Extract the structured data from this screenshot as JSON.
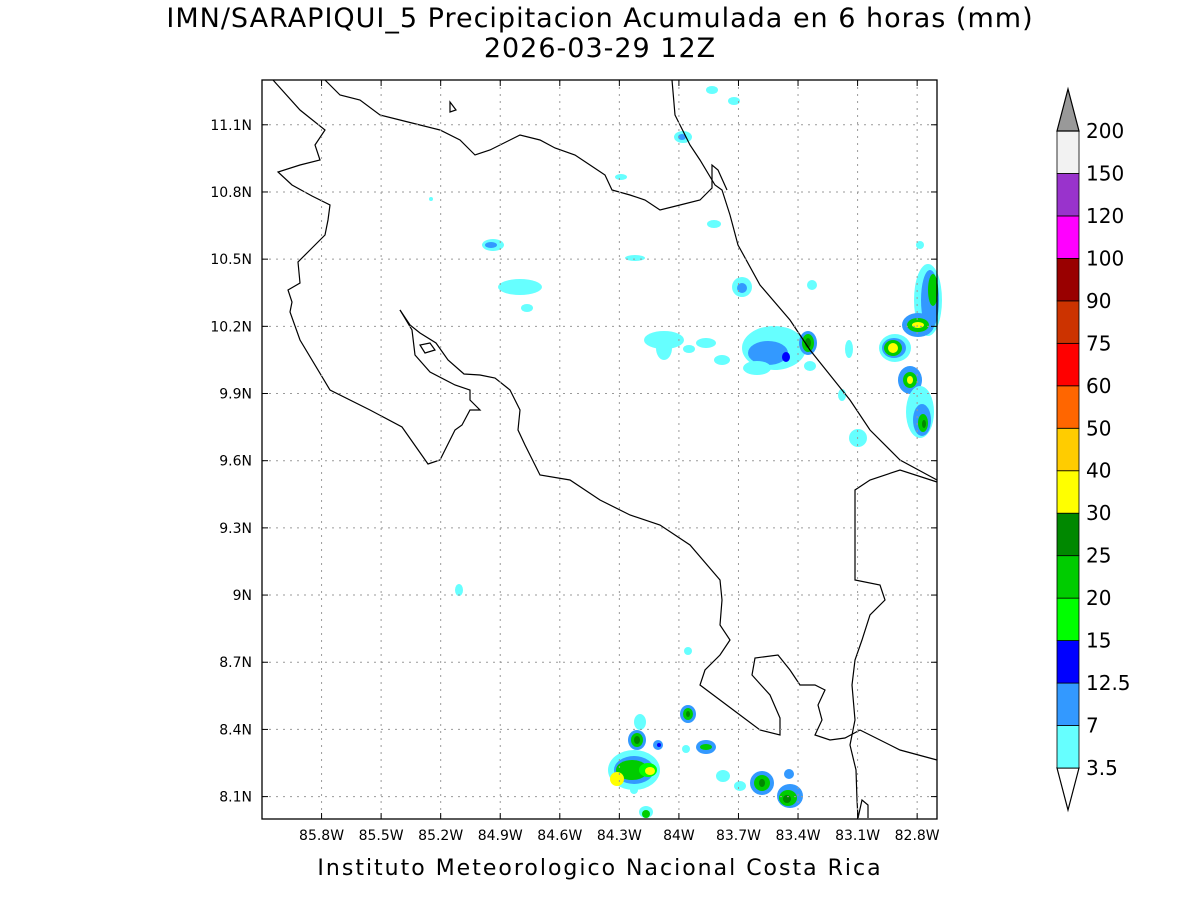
{
  "title": {
    "line1": "IMN/SARAPIQUI_5 Precipitacion Acumulada en 6 horas (mm)",
    "line2": "2026-03-29 12Z"
  },
  "footer": "Instituto Meteorologico Nacional Costa Rica",
  "map": {
    "lon_range": [
      -86.1,
      -82.7
    ],
    "lat_range": [
      8.0,
      11.3
    ],
    "lon_ticks": [
      "85.8W",
      "85.5W",
      "85.2W",
      "84.9W",
      "84.6W",
      "84.3W",
      "84W",
      "83.7W",
      "83.4W",
      "83.1W",
      "82.8W"
    ],
    "lat_ticks": [
      "11.1N",
      "10.8N",
      "10.5N",
      "10.2N",
      "9.9N",
      "9.6N",
      "9.3N",
      "9N",
      "8.7N",
      "8.4N",
      "8.1N"
    ],
    "grid": true,
    "grid_style": "dotted"
  },
  "colorbar": {
    "labels": [
      "3.5",
      "7",
      "12.5",
      "15",
      "20",
      "25",
      "30",
      "40",
      "50",
      "60",
      "75",
      "90",
      "100",
      "120",
      "150",
      "200"
    ],
    "colors": [
      "#66ffff",
      "#3399ff",
      "#0000ff",
      "#00ff00",
      "#00cc00",
      "#008800",
      "#ffff00",
      "#ffcc00",
      "#ff6600",
      "#ff0000",
      "#cc3300",
      "#990000",
      "#ff00ff",
      "#9933cc",
      "#f2f2f2",
      "#999999"
    ],
    "under_color": "#ffffff",
    "over_color": "#999999"
  }
}
